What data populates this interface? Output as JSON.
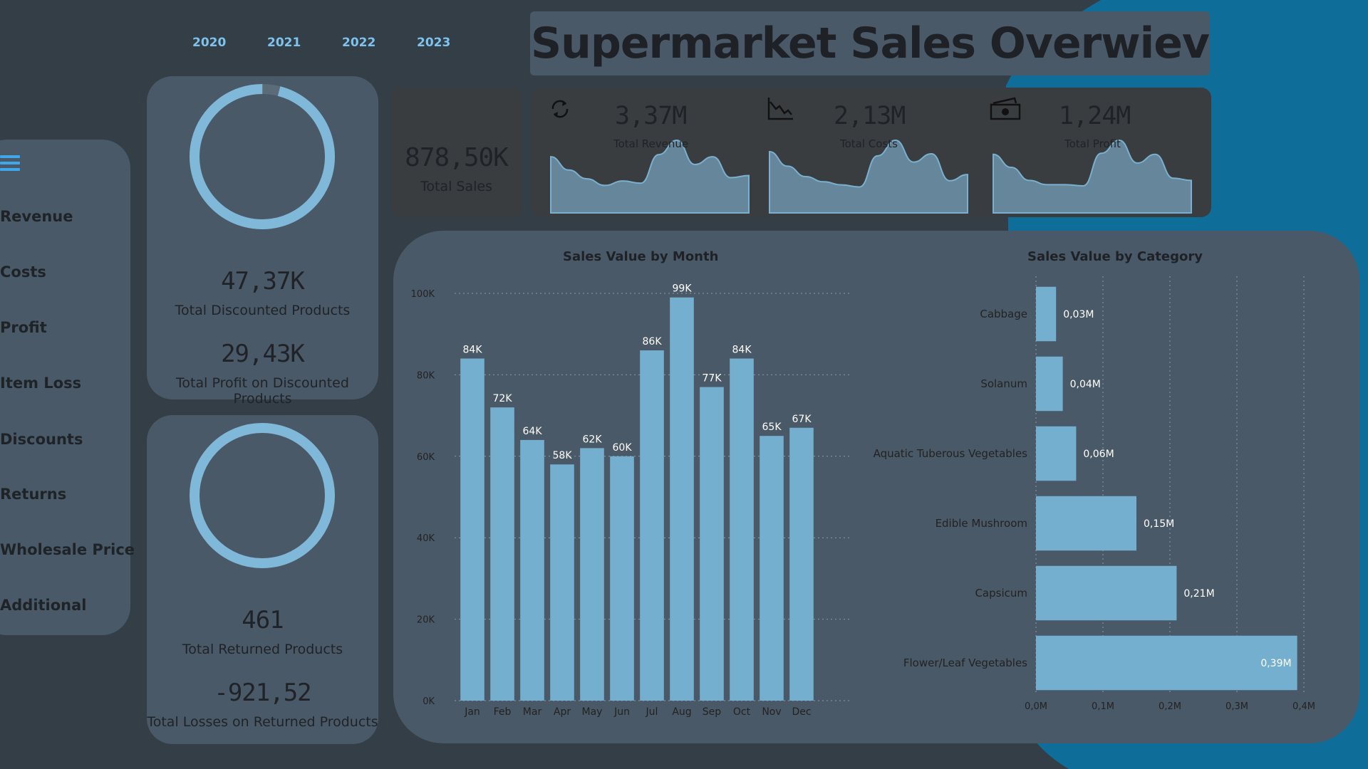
{
  "colors": {
    "background": "#333e47",
    "panel": "#4a5967",
    "dark_panel": "#3a3d40",
    "accent_blue": "#7ec3ee",
    "bar": "#75afcf",
    "ring": "#7fb8d9",
    "spark_fill": "#66879b",
    "deco_blue": "#0e6d99"
  },
  "years": [
    "2020",
    "2021",
    "2022",
    "2023"
  ],
  "title": "Supermarket Sales Overwiev",
  "sidebar": {
    "menu_icon": "hamburger-menu-icon",
    "items": [
      "Revenue",
      "Costs",
      "Profit",
      "Item Loss",
      "Discounts",
      "Returns",
      "Wholesale Price",
      "Additional"
    ]
  },
  "discounted": {
    "ring_fill_fraction": 0.96,
    "value": "47,37K",
    "label": "Total Discounted Products",
    "profit_value": "29,43K",
    "profit_label": "Total Profit on Discounted Products"
  },
  "returned": {
    "ring_fill_fraction": 1.0,
    "value": "461",
    "label": "Total Returned Products",
    "loss_value": "-921,52",
    "loss_label": "Total Losses on Returned Products"
  },
  "total_sales": {
    "value": "878,50K",
    "label": "Total Sales"
  },
  "sparks": [
    {
      "icon": "refresh-cycle-icon",
      "value": "3,37M",
      "label": "Total Revenue",
      "trend": [
        84,
        72,
        64,
        58,
        62,
        60,
        86,
        99,
        77,
        84,
        65,
        67
      ]
    },
    {
      "icon": "declining-chart-icon",
      "value": "2,13M",
      "label": "Total Costs",
      "trend": [
        84,
        70,
        60,
        55,
        52,
        50,
        80,
        95,
        74,
        82,
        56,
        62
      ]
    },
    {
      "icon": "cash-icon",
      "value": "1,24M",
      "label": "Total Profit",
      "trend": [
        84,
        72,
        60,
        56,
        56,
        55,
        85,
        97,
        76,
        84,
        62,
        60
      ]
    }
  ],
  "chart_data": [
    {
      "type": "bar",
      "title": "Sales Value by Month",
      "categories": [
        "Jan",
        "Feb",
        "Mar",
        "Apr",
        "May",
        "Jun",
        "Jul",
        "Aug",
        "Sep",
        "Oct",
        "Nov",
        "Dec"
      ],
      "values": [
        84,
        72,
        64,
        58,
        62,
        60,
        86,
        99,
        77,
        84,
        65,
        67
      ],
      "data_labels": [
        "84K",
        "72K",
        "64K",
        "58K",
        "62K",
        "60K",
        "86K",
        "99K",
        "77K",
        "84K",
        "65K",
        "67K"
      ],
      "yticks": [
        "0K",
        "20K",
        "40K",
        "60K",
        "80K",
        "100K"
      ],
      "ylim": [
        0,
        100
      ],
      "grid": true
    },
    {
      "type": "bar",
      "orientation": "horizontal",
      "title": "Sales Value by Category",
      "categories": [
        "Cabbage",
        "Solanum",
        "Aquatic Tuberous Vegetables",
        "Edible Mushroom",
        "Capsicum",
        "Flower/Leaf Vegetables"
      ],
      "values": [
        0.03,
        0.04,
        0.06,
        0.15,
        0.21,
        0.39
      ],
      "data_labels": [
        "0,03M",
        "0,04M",
        "0,06M",
        "0,15M",
        "0,21M",
        "0,39M"
      ],
      "xticks": [
        "0,0M",
        "0,1M",
        "0,2M",
        "0,3M",
        "0,4M"
      ],
      "xlim": [
        0,
        0.4
      ],
      "grid": true
    }
  ]
}
